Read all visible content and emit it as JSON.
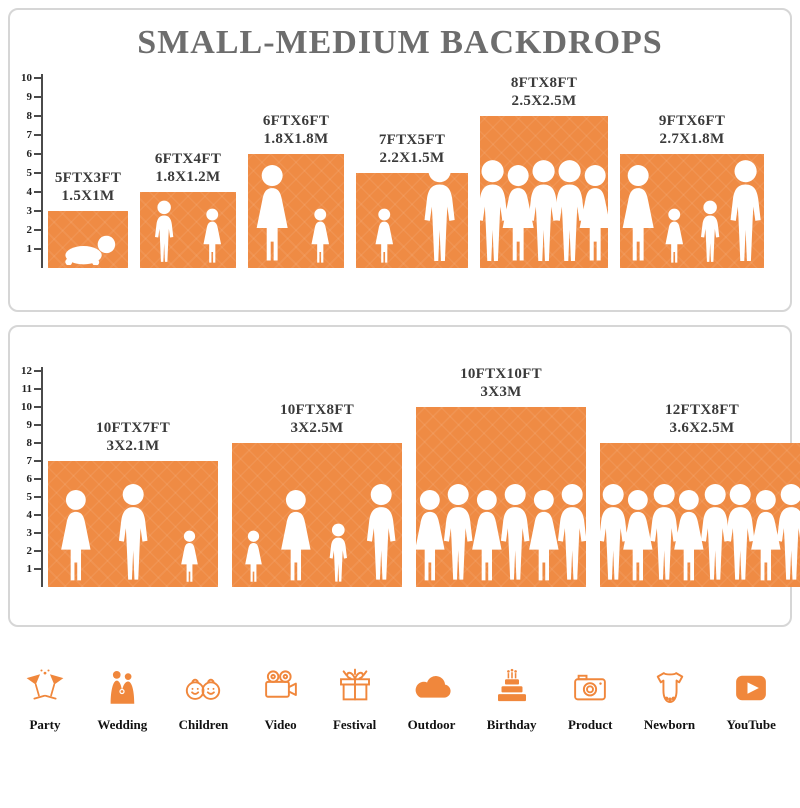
{
  "title": "SMALL-MEDIUM BACKDROPS",
  "colors": {
    "bar_orange": "#EF8B44",
    "icon_orange": "#F0873C",
    "title_gray": "#6D6D6D",
    "label_dark": "#3A3A3A"
  },
  "panels": [
    {
      "name": "small-medium-top",
      "ruler_labels": [
        "1",
        "2",
        "3",
        "4",
        "5",
        "6",
        "7",
        "8",
        "9",
        "10"
      ],
      "bars": [
        {
          "size_ft": "5FTX3FT",
          "size_m": "1.5X1M",
          "width_ft": 5,
          "height_ft": 3,
          "figures": [
            "baby"
          ]
        },
        {
          "size_ft": "6FTX4FT",
          "size_m": "1.8X1.2M",
          "width_ft": 6,
          "height_ft": 4,
          "figures": [
            "boy",
            "girl"
          ]
        },
        {
          "size_ft": "6FTX6FT",
          "size_m": "1.8X1.8M",
          "width_ft": 6,
          "height_ft": 6,
          "figures": [
            "woman",
            "girl"
          ]
        },
        {
          "size_ft": "7FTX5FT",
          "size_m": "2.2X1.5M",
          "width_ft": 7,
          "height_ft": 5,
          "figures": [
            "girl",
            "adult"
          ]
        },
        {
          "size_ft": "8FTX8FT",
          "size_m": "2.5X2.5M",
          "width_ft": 8,
          "height_ft": 8,
          "figures": [
            "adult",
            "woman",
            "adult",
            "adult",
            "woman"
          ]
        },
        {
          "size_ft": "9FTX6FT",
          "size_m": "2.7X1.8M",
          "width_ft": 9,
          "height_ft": 6,
          "figures": [
            "woman",
            "girl",
            "boy",
            "adult"
          ]
        }
      ]
    },
    {
      "name": "medium-bottom",
      "ruler_labels": [
        "1",
        "2",
        "3",
        "4",
        "5",
        "6",
        "7",
        "8",
        "9",
        "10",
        "11",
        "12"
      ],
      "bars": [
        {
          "size_ft": "10FTX7FT",
          "size_m": "3X2.1M",
          "width_ft": 10,
          "height_ft": 7,
          "figures": [
            "woman",
            "adult",
            "girl"
          ]
        },
        {
          "size_ft": "10FTX8FT",
          "size_m": "3X2.5M",
          "width_ft": 10,
          "height_ft": 8,
          "figures": [
            "girl",
            "woman",
            "boy",
            "adult"
          ]
        },
        {
          "size_ft": "10FTX10FT",
          "size_m": "3X3M",
          "width_ft": 10,
          "height_ft": 10,
          "figures": [
            "woman",
            "adult",
            "woman",
            "adult",
            "woman",
            "adult"
          ]
        },
        {
          "size_ft": "12FTX8FT",
          "size_m": "3.6X2.5M",
          "width_ft": 12,
          "height_ft": 8,
          "figures": [
            "adult",
            "woman",
            "adult",
            "woman",
            "adult",
            "adult",
            "woman",
            "adult"
          ]
        }
      ]
    }
  ],
  "categories": [
    {
      "label": "Party",
      "icon": "party-glasses-icon"
    },
    {
      "label": "Wedding",
      "icon": "wedding-couple-icon"
    },
    {
      "label": "Children",
      "icon": "children-faces-icon"
    },
    {
      "label": "Video",
      "icon": "video-camera-icon"
    },
    {
      "label": "Festival",
      "icon": "festival-gift-icon"
    },
    {
      "label": "Outdoor",
      "icon": "outdoor-cloud-icon"
    },
    {
      "label": "Birthday",
      "icon": "birthday-cake-icon"
    },
    {
      "label": "Product",
      "icon": "product-camera-icon"
    },
    {
      "label": "Newborn",
      "icon": "newborn-onesie-icon"
    },
    {
      "label": "YouTube",
      "icon": "youtube-play-icon"
    }
  ]
}
